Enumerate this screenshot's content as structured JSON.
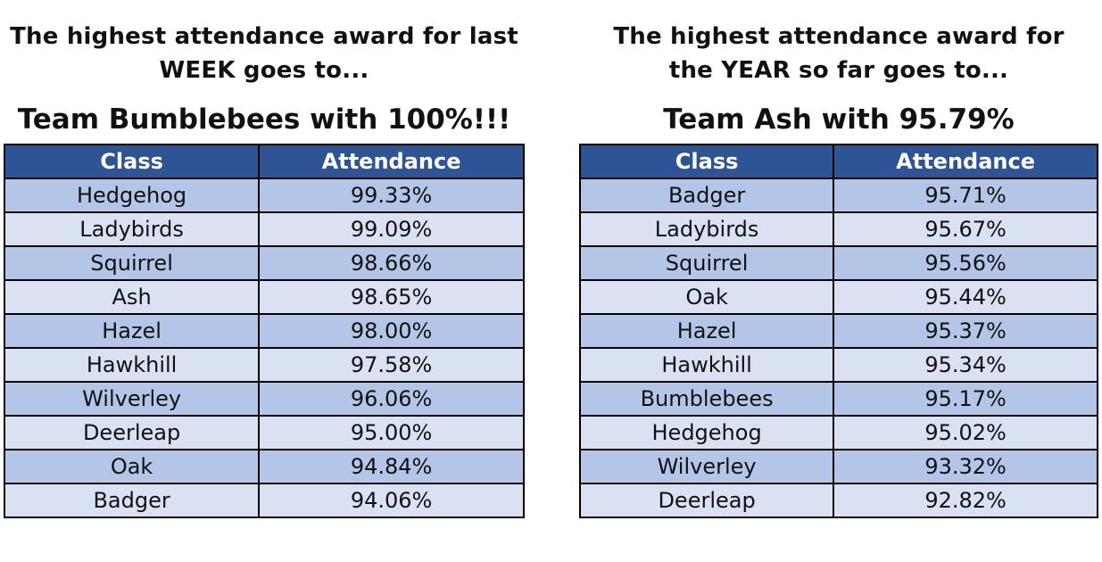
{
  "colors": {
    "header_bg": "#2f5496",
    "header_text": "#ffffff",
    "row_dark": "#b4c6e7",
    "row_light": "#d9e1f2",
    "border": "#000000"
  },
  "week": {
    "heading_line1": "The highest attendance award for last",
    "heading_line2": "WEEK goes to...",
    "winner": "Team Bumblebees with 100%!!!",
    "columns": [
      "Class",
      "Attendance"
    ],
    "rows": [
      {
        "class": "Hedgehog",
        "attendance": "99.33%"
      },
      {
        "class": "Ladybirds",
        "attendance": "99.09%"
      },
      {
        "class": "Squirrel",
        "attendance": "98.66%"
      },
      {
        "class": "Ash",
        "attendance": "98.65%"
      },
      {
        "class": "Hazel",
        "attendance": "98.00%"
      },
      {
        "class": "Hawkhill",
        "attendance": "97.58%"
      },
      {
        "class": "Wilverley",
        "attendance": "96.06%"
      },
      {
        "class": "Deerleap",
        "attendance": "95.00%"
      },
      {
        "class": "Oak",
        "attendance": "94.84%"
      },
      {
        "class": "Badger",
        "attendance": "94.06%"
      }
    ]
  },
  "year": {
    "heading_line1": "The highest attendance award for",
    "heading_line2": "the YEAR so far goes to...",
    "winner": "Team Ash with 95.79%",
    "columns": [
      "Class",
      "Attendance"
    ],
    "rows": [
      {
        "class": "Badger",
        "attendance": "95.71%"
      },
      {
        "class": "Ladybirds",
        "attendance": "95.67%"
      },
      {
        "class": "Squirrel",
        "attendance": "95.56%"
      },
      {
        "class": "Oak",
        "attendance": "95.44%"
      },
      {
        "class": "Hazel",
        "attendance": "95.37%"
      },
      {
        "class": "Hawkhill",
        "attendance": "95.34%"
      },
      {
        "class": "Bumblebees",
        "attendance": "95.17%"
      },
      {
        "class": "Hedgehog",
        "attendance": "95.02%"
      },
      {
        "class": "Wilverley",
        "attendance": "93.32%"
      },
      {
        "class": "Deerleap",
        "attendance": "92.82%"
      }
    ]
  }
}
